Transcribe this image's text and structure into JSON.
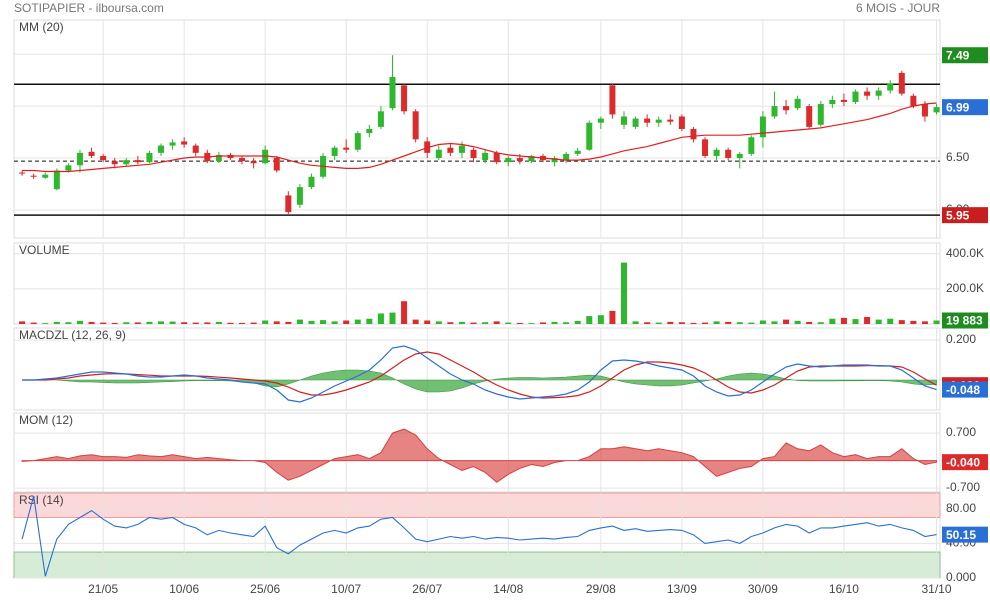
{
  "header": {
    "title": "SOTIPAPIER - ilboursa.com",
    "period": "6 MOIS - JOUR"
  },
  "chart_data": [
    {
      "type": "candlestick",
      "label": "MM (20)",
      "up_color": "#2db82d",
      "down_color": "#dd2a2a",
      "candles": [
        [
          6.36,
          6.38,
          6.33,
          6.35
        ],
        [
          6.33,
          6.35,
          6.3,
          6.32
        ],
        [
          6.31,
          6.36,
          6.3,
          6.34
        ],
        [
          6.2,
          6.4,
          6.19,
          6.38
        ],
        [
          6.38,
          6.45,
          6.36,
          6.43
        ],
        [
          6.43,
          6.58,
          6.36,
          6.55
        ],
        [
          6.56,
          6.6,
          6.5,
          6.52
        ],
        [
          6.52,
          6.54,
          6.46,
          6.48
        ],
        [
          6.47,
          6.5,
          6.4,
          6.44
        ],
        [
          6.44,
          6.5,
          6.42,
          6.48
        ],
        [
          6.48,
          6.52,
          6.44,
          6.46
        ],
        [
          6.46,
          6.57,
          6.45,
          6.55
        ],
        [
          6.55,
          6.64,
          6.52,
          6.62
        ],
        [
          6.62,
          6.68,
          6.58,
          6.65
        ],
        [
          6.66,
          6.7,
          6.6,
          6.63
        ],
        [
          6.62,
          6.64,
          6.52,
          6.55
        ],
        [
          6.55,
          6.58,
          6.45,
          6.47
        ],
        [
          6.47,
          6.56,
          6.45,
          6.53
        ],
        [
          6.53,
          6.55,
          6.48,
          6.5
        ],
        [
          6.5,
          6.52,
          6.44,
          6.47
        ],
        [
          6.47,
          6.5,
          6.4,
          6.45
        ],
        [
          6.45,
          6.62,
          6.44,
          6.58
        ],
        [
          6.5,
          6.52,
          6.36,
          6.38
        ],
        [
          6.14,
          6.18,
          5.95,
          5.98
        ],
        [
          6.05,
          6.25,
          6.02,
          6.22
        ],
        [
          6.22,
          6.35,
          6.2,
          6.32
        ],
        [
          6.32,
          6.55,
          6.3,
          6.52
        ],
        [
          6.52,
          6.62,
          6.48,
          6.6
        ],
        [
          6.6,
          6.68,
          6.55,
          6.58
        ],
        [
          6.58,
          6.76,
          6.56,
          6.74
        ],
        [
          6.74,
          6.82,
          6.7,
          6.78
        ],
        [
          6.8,
          7.0,
          6.78,
          6.95
        ],
        [
          6.98,
          7.49,
          6.96,
          7.28
        ],
        [
          7.2,
          7.22,
          6.92,
          6.95
        ],
        [
          6.95,
          6.97,
          6.65,
          6.68
        ],
        [
          6.66,
          6.7,
          6.5,
          6.55
        ],
        [
          6.5,
          6.62,
          6.48,
          6.58
        ],
        [
          6.6,
          6.64,
          6.52,
          6.55
        ],
        [
          6.55,
          6.66,
          6.5,
          6.62
        ],
        [
          6.58,
          6.6,
          6.46,
          6.5
        ],
        [
          6.48,
          6.58,
          6.45,
          6.55
        ],
        [
          6.55,
          6.57,
          6.44,
          6.46
        ],
        [
          6.46,
          6.52,
          6.42,
          6.5
        ],
        [
          6.5,
          6.54,
          6.44,
          6.47
        ],
        [
          6.47,
          6.53,
          6.45,
          6.52
        ],
        [
          6.52,
          6.54,
          6.46,
          6.48
        ],
        [
          6.46,
          6.52,
          6.42,
          6.5
        ],
        [
          6.48,
          6.56,
          6.45,
          6.54
        ],
        [
          6.54,
          6.6,
          6.52,
          6.57
        ],
        [
          6.58,
          6.86,
          6.57,
          6.84
        ],
        [
          6.84,
          6.9,
          6.78,
          6.88
        ],
        [
          7.2,
          7.22,
          6.88,
          6.92
        ],
        [
          6.82,
          6.95,
          6.78,
          6.9
        ],
        [
          6.8,
          6.9,
          6.78,
          6.88
        ],
        [
          6.88,
          6.92,
          6.8,
          6.84
        ],
        [
          6.84,
          6.9,
          6.8,
          6.87
        ],
        [
          6.87,
          6.92,
          6.82,
          6.85
        ],
        [
          6.9,
          6.92,
          6.76,
          6.78
        ],
        [
          6.78,
          6.8,
          6.65,
          6.68
        ],
        [
          6.68,
          6.7,
          6.5,
          6.52
        ],
        [
          6.52,
          6.6,
          6.48,
          6.58
        ],
        [
          6.58,
          6.6,
          6.48,
          6.5
        ],
        [
          6.5,
          6.56,
          6.4,
          6.54
        ],
        [
          6.54,
          6.72,
          6.52,
          6.7
        ],
        [
          6.7,
          6.95,
          6.6,
          6.9
        ],
        [
          6.9,
          7.14,
          6.88,
          7.0
        ],
        [
          7.0,
          7.06,
          6.92,
          6.96
        ],
        [
          6.98,
          7.1,
          6.96,
          7.07
        ],
        [
          7.0,
          7.02,
          6.78,
          6.8
        ],
        [
          6.82,
          7.05,
          6.8,
          7.02
        ],
        [
          7.02,
          7.1,
          6.98,
          7.06
        ],
        [
          7.06,
          7.12,
          7.0,
          7.04
        ],
        [
          7.04,
          7.16,
          7.02,
          7.14
        ],
        [
          7.14,
          7.18,
          7.06,
          7.1
        ],
        [
          7.1,
          7.18,
          7.06,
          7.15
        ],
        [
          7.15,
          7.25,
          7.12,
          7.22
        ],
        [
          7.32,
          7.34,
          7.1,
          7.12
        ],
        [
          7.1,
          7.12,
          6.98,
          7.0
        ],
        [
          7.02,
          7.05,
          6.85,
          6.9
        ],
        [
          6.94,
          7.02,
          6.92,
          6.99
        ]
      ],
      "ma": {
        "color": "#e02020",
        "values": [
          6.38,
          6.38,
          6.37,
          6.37,
          6.37,
          6.38,
          6.39,
          6.4,
          6.41,
          6.42,
          6.43,
          6.44,
          6.46,
          6.48,
          6.5,
          6.51,
          6.51,
          6.52,
          6.52,
          6.52,
          6.52,
          6.52,
          6.51,
          6.48,
          6.45,
          6.43,
          6.42,
          6.41,
          6.4,
          6.4,
          6.41,
          6.44,
          6.48,
          6.52,
          6.56,
          6.6,
          6.63,
          6.64,
          6.63,
          6.61,
          6.58,
          6.55,
          6.53,
          6.52,
          6.51,
          6.5,
          6.49,
          6.48,
          6.48,
          6.49,
          6.51,
          6.54,
          6.57,
          6.59,
          6.61,
          6.64,
          6.67,
          6.7,
          6.71,
          6.72,
          6.72,
          6.72,
          6.72,
          6.73,
          6.74,
          6.75,
          6.76,
          6.77,
          6.78,
          6.79,
          6.81,
          6.83,
          6.85,
          6.87,
          6.9,
          6.93,
          6.97,
          7.0,
          7.02,
          7.03
        ]
      },
      "levels": [
        {
          "value": 7.21,
          "dashed": false
        },
        {
          "value": 6.47,
          "dashed": true
        },
        {
          "value": 5.95,
          "dashed": false
        }
      ],
      "badges": [
        {
          "of": "high",
          "candle": 32,
          "color": "#1e8c1e"
        },
        {
          "of": "close",
          "candle": 79,
          "color": "#2a6fd6"
        },
        {
          "of": "low",
          "candle": 23,
          "color": "#c81e1e"
        }
      ],
      "ylim": [
        5.73,
        7.81
      ],
      "yticks": [
        {
          "value": 6,
          "label": "6.00"
        },
        {
          "value": 6.5,
          "label": "6.50"
        },
        {
          "value": 7,
          "label": "7.00"
        },
        {
          "value": 7.5,
          "label": "7.50"
        }
      ],
      "xticks": [
        {
          "value": 7,
          "label": "21/05"
        },
        {
          "value": 14,
          "label": "10/06"
        },
        {
          "value": 21,
          "label": "25/06"
        },
        {
          "value": 28,
          "label": "10/07"
        },
        {
          "value": 35,
          "label": "26/07"
        },
        {
          "value": 42,
          "label": "14/08"
        },
        {
          "value": 50,
          "label": "29/08"
        },
        {
          "value": 57,
          "label": "13/09"
        },
        {
          "value": 64,
          "label": "30/09"
        },
        {
          "value": 71,
          "label": "16/10"
        },
        {
          "value": 79,
          "label": "31/10"
        }
      ]
    },
    {
      "type": "volume",
      "label": "VOLUME",
      "label_color": "#2db82d",
      "badge_color": "#1e8c1e",
      "values": [
        15000,
        8000,
        5000,
        12000,
        10000,
        18000,
        12000,
        8000,
        6000,
        10000,
        9000,
        12000,
        15000,
        14000,
        10000,
        8000,
        9000,
        12000,
        7000,
        6000,
        8000,
        20000,
        15000,
        12000,
        25000,
        18000,
        22000,
        15000,
        20000,
        25000,
        30000,
        60000,
        65000,
        130000,
        25000,
        20000,
        15000,
        10000,
        12000,
        8000,
        10000,
        15000,
        8000,
        6000,
        5000,
        9000,
        12000,
        10000,
        18000,
        45000,
        50000,
        75000,
        350000,
        15000,
        10000,
        8000,
        12000,
        10000,
        6000,
        8000,
        15000,
        12000,
        10000,
        8000,
        20000,
        15000,
        25000,
        18000,
        12000,
        10000,
        30000,
        35000,
        28000,
        40000,
        25000,
        30000,
        22000,
        18000,
        15000,
        19883
      ],
      "last_label": "19 883",
      "ylim": [
        0,
        450000
      ],
      "yticks": [
        {
          "value": 200000,
          "label": "200.0K"
        },
        {
          "value": 400000,
          "label": "400.0K"
        }
      ]
    },
    {
      "type": "macd",
      "label": "MACDZL (12, 26, 9)",
      "label_color": "#2a6fd6",
      "series": [
        {
          "color": "#2a6fd6",
          "values": [
            0,
            0,
            0.005,
            0.01,
            0.02,
            0.03,
            0.04,
            0.04,
            0.035,
            0.03,
            0.02,
            0.015,
            0.015,
            0.02,
            0.025,
            0.02,
            0.01,
            0.005,
            0,
            -0.01,
            -0.015,
            -0.02,
            -0.05,
            -0.1,
            -0.11,
            -0.09,
            -0.06,
            -0.03,
            -0.005,
            0.02,
            0.05,
            0.1,
            0.16,
            0.17,
            0.15,
            0.11,
            0.07,
            0.03,
            0,
            -0.02,
            -0.05,
            -0.07,
            -0.085,
            -0.095,
            -0.09,
            -0.085,
            -0.08,
            -0.07,
            -0.05,
            -0.01,
            0.05,
            0.095,
            0.1,
            0.095,
            0.085,
            0.07,
            0.06,
            0.05,
            0.02,
            -0.03,
            -0.06,
            -0.08,
            -0.075,
            -0.05,
            -0.01,
            0.03,
            0.065,
            0.08,
            0.07,
            0.065,
            0.07,
            0.075,
            0.075,
            0.075,
            0.07,
            0.07,
            0.05,
            0.01,
            -0.03,
            -0.048
          ]
        },
        {
          "color": "#d02020",
          "values": [
            0,
            0,
            0,
            0.005,
            0.01,
            0.02,
            0.025,
            0.03,
            0.032,
            0.03,
            0.027,
            0.024,
            0.02,
            0.02,
            0.02,
            0.02,
            0.018,
            0.014,
            0.01,
            0.005,
            0,
            -0.005,
            -0.015,
            -0.035,
            -0.06,
            -0.075,
            -0.075,
            -0.065,
            -0.05,
            -0.03,
            -0.01,
            0.02,
            0.06,
            0.1,
            0.13,
            0.14,
            0.13,
            0.1,
            0.07,
            0.04,
            0.005,
            -0.025,
            -0.05,
            -0.07,
            -0.085,
            -0.09,
            -0.088,
            -0.085,
            -0.078,
            -0.06,
            -0.03,
            0.01,
            0.05,
            0.075,
            0.09,
            0.09,
            0.085,
            0.075,
            0.06,
            0.035,
            0,
            -0.035,
            -0.06,
            -0.065,
            -0.05,
            -0.025,
            0.01,
            0.045,
            0.065,
            0.07,
            0.07,
            0.07,
            0.07,
            0.072,
            0.072,
            0.07,
            0.065,
            0.04,
            0.005,
            -0.026
          ]
        }
      ],
      "histogram": {
        "color": "#4caf50",
        "values": [
          0,
          0,
          0,
          0,
          -0.005,
          -0.01,
          -0.01,
          -0.012,
          -0.015,
          -0.015,
          -0.015,
          -0.012,
          -0.01,
          -0.008,
          -0.005,
          -0.003,
          -0.002,
          -0.003,
          -0.005,
          -0.01,
          -0.015,
          -0.03,
          -0.035,
          -0.02,
          0,
          0.02,
          0.035,
          0.045,
          0.05,
          0.05,
          0.045,
          0.035,
          0.01,
          -0.02,
          -0.045,
          -0.06,
          -0.06,
          -0.055,
          -0.04,
          -0.02,
          -0.005,
          0.005,
          0.01,
          0.012,
          0.012,
          0.01,
          0.012,
          0.015,
          0.02,
          0.025,
          0.02,
          0.005,
          -0.01,
          -0.02,
          -0.025,
          -0.03,
          -0.03,
          -0.025,
          -0.015,
          -0.005,
          0.005,
          0.02,
          0.03,
          0.035,
          0.03,
          0.02,
          0.005,
          -0.002,
          -0.005,
          -0.005,
          -0.005,
          -0.004,
          -0.004,
          -0.003,
          -0.003,
          -0.005,
          -0.01,
          -0.02,
          -0.025,
          -0.022
        ]
      },
      "ylim": [
        -0.15,
        0.25
      ],
      "yticks": [
        {
          "value": 0.2,
          "label": "0.200"
        }
      ]
    },
    {
      "type": "momentum",
      "label": "MOM (12)",
      "label_color": "#dd2a2a",
      "color": "#d84040",
      "values": [
        -0.02,
        0,
        0.05,
        0.1,
        0.05,
        0.12,
        0.15,
        0.1,
        0.1,
        0.08,
        0.15,
        0.12,
        0.1,
        0.15,
        0.1,
        0.05,
        0.08,
        0.05,
        0.02,
        0,
        0,
        -0.05,
        -0.3,
        -0.5,
        -0.4,
        -0.25,
        -0.1,
        0.05,
        0.1,
        0.15,
        0.05,
        0.2,
        0.7,
        0.8,
        0.65,
        0.3,
        0.05,
        -0.1,
        -0.25,
        -0.15,
        -0.3,
        -0.55,
        -0.35,
        -0.2,
        -0.1,
        -0.15,
        -0.05,
        0,
        0,
        0.1,
        0.3,
        0.3,
        0.35,
        0.3,
        0.25,
        0.3,
        0.25,
        0.2,
        0.1,
        -0.15,
        -0.4,
        -0.3,
        -0.2,
        -0.15,
        0.05,
        0.1,
        0.45,
        0.3,
        0.25,
        0.4,
        0.2,
        0.1,
        0.15,
        0.05,
        0.1,
        0.1,
        0.3,
        0.05,
        -0.1,
        -0.04
      ],
      "last_label": "-0.040",
      "ylim": [
        -0.8,
        1.16
      ],
      "yticks": [
        {
          "value": -0.7,
          "label": "-0.700"
        },
        {
          "value": 0.7,
          "label": "0.700"
        }
      ]
    },
    {
      "type": "rsi",
      "label": "RSI (14)",
      "label_color": "#2a6fd6",
      "color": "#2a6fd6",
      "values": [
        45,
        95,
        2,
        45,
        62,
        70,
        78,
        68,
        60,
        58,
        62,
        70,
        68,
        70,
        62,
        58,
        50,
        55,
        52,
        50,
        48,
        60,
        35,
        28,
        38,
        45,
        52,
        55,
        52,
        58,
        60,
        68,
        70,
        58,
        45,
        42,
        45,
        48,
        46,
        48,
        45,
        47,
        46,
        44,
        45,
        46,
        45,
        47,
        48,
        55,
        58,
        60,
        55,
        57,
        54,
        55,
        56,
        55,
        50,
        40,
        42,
        44,
        40,
        48,
        52,
        58,
        62,
        60,
        52,
        58,
        58,
        60,
        62,
        64,
        60,
        62,
        58,
        55,
        48,
        50.15
      ],
      "overbought": 70,
      "oversold": 30,
      "ylim": [
        0,
        96
      ],
      "yticks": [
        {
          "value": 0,
          "label": "0.000"
        },
        {
          "value": 40,
          "label": "40.00"
        },
        {
          "value": 80,
          "label": "80.00"
        }
      ]
    }
  ]
}
